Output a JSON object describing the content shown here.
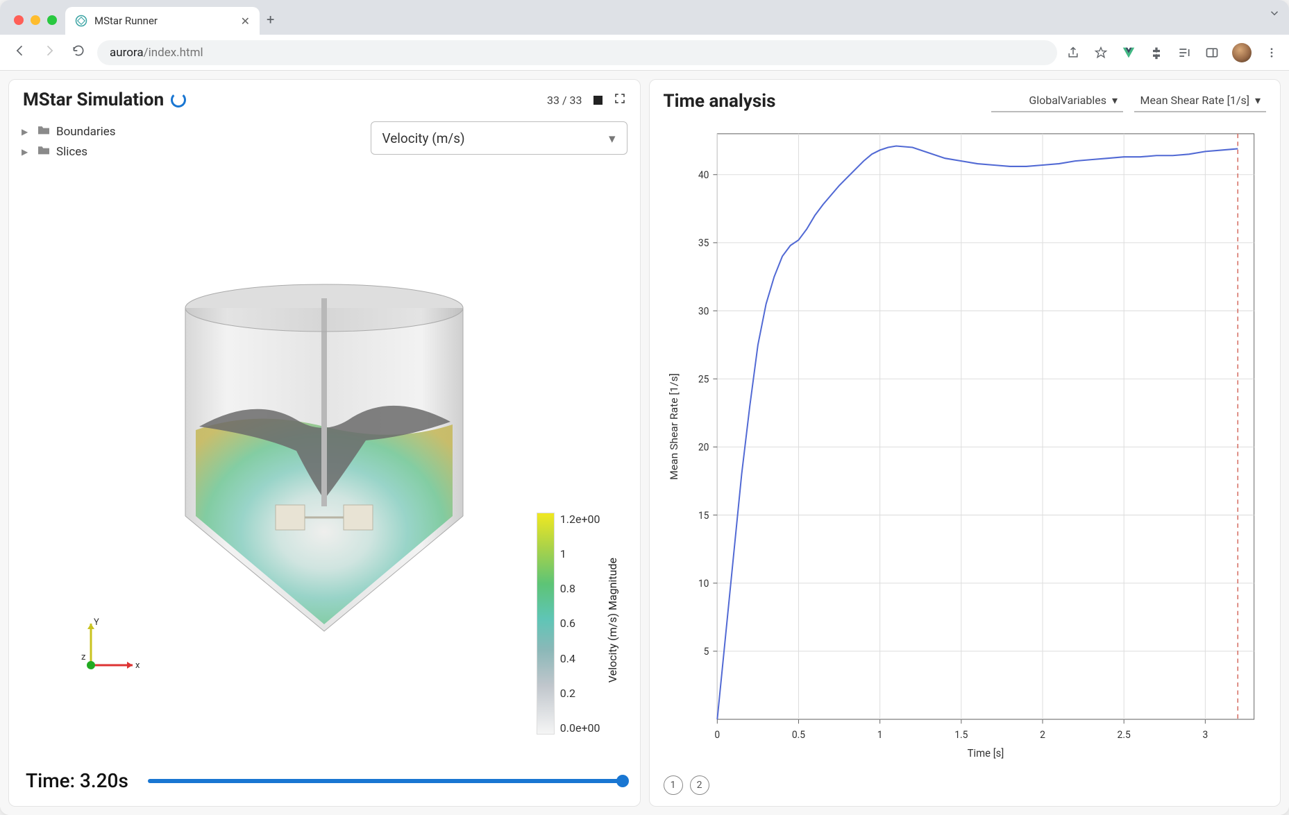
{
  "browser": {
    "tab_title": "MStar Runner",
    "url_host": "aurora",
    "url_path": "/index.html"
  },
  "left_panel": {
    "title": "MStar Simulation",
    "frame_current": 33,
    "frame_total": 33,
    "tree": {
      "item1": "Boundaries",
      "item2": "Slices"
    },
    "field_dropdown": "Velocity (m/s)",
    "time_label": "Time: 3.20s",
    "slider_value": 1.0,
    "colorbar": {
      "label": "Velocity (m/s) Magnitude",
      "ticks": [
        "1.2e+00",
        "1",
        "0.8",
        "0.6",
        "0.4",
        "0.2",
        "0.0e+00"
      ],
      "gradient_stops": [
        "#f5f5f5",
        "#c0c6cc",
        "#8bb8b8",
        "#5fc5b6",
        "#5dc476",
        "#a8d24a",
        "#f0e821"
      ]
    },
    "axis_labels": {
      "x": "x",
      "y": "Y",
      "z": "z"
    }
  },
  "right_panel": {
    "title": "Time analysis",
    "dropdown1": "GlobalVariables",
    "dropdown2": "Mean Shear Rate [1/s]",
    "pages": [
      "1",
      "2"
    ]
  },
  "chart": {
    "type": "line",
    "xlabel": "Time [s]",
    "ylabel": "Mean Shear Rate [1/s]",
    "xlim": [
      0,
      3.3
    ],
    "ylim": [
      0,
      43
    ],
    "xticks": [
      0,
      0.5,
      1,
      1.5,
      2,
      2.5,
      3
    ],
    "yticks": [
      5,
      10,
      15,
      20,
      25,
      30,
      35,
      40
    ],
    "xtick_step": 0.5,
    "ytick_step": 5,
    "line_color": "#5169d4",
    "line_width": 2,
    "grid_color": "#dddddd",
    "axis_color": "#666666",
    "background_color": "#ffffff",
    "marker_line_color": "#d46a5e",
    "marker_x": 3.2,
    "label_fontsize": 15,
    "tick_fontsize": 14,
    "series": {
      "x": [
        0.0,
        0.05,
        0.1,
        0.15,
        0.2,
        0.25,
        0.3,
        0.35,
        0.4,
        0.45,
        0.5,
        0.55,
        0.6,
        0.65,
        0.7,
        0.75,
        0.8,
        0.85,
        0.9,
        0.95,
        1.0,
        1.05,
        1.1,
        1.2,
        1.3,
        1.4,
        1.5,
        1.6,
        1.7,
        1.8,
        1.9,
        2.0,
        2.1,
        2.2,
        2.3,
        2.4,
        2.5,
        2.6,
        2.7,
        2.8,
        2.9,
        3.0,
        3.1,
        3.2
      ],
      "y": [
        0.0,
        6.0,
        12.0,
        18.0,
        23.0,
        27.5,
        30.5,
        32.5,
        34.0,
        34.8,
        35.2,
        36.0,
        37.0,
        37.8,
        38.5,
        39.2,
        39.8,
        40.4,
        41.0,
        41.5,
        41.8,
        42.0,
        42.1,
        42.0,
        41.6,
        41.2,
        41.0,
        40.8,
        40.7,
        40.6,
        40.6,
        40.7,
        40.8,
        41.0,
        41.1,
        41.2,
        41.3,
        41.3,
        41.4,
        41.4,
        41.5,
        41.7,
        41.8,
        41.9
      ]
    }
  }
}
